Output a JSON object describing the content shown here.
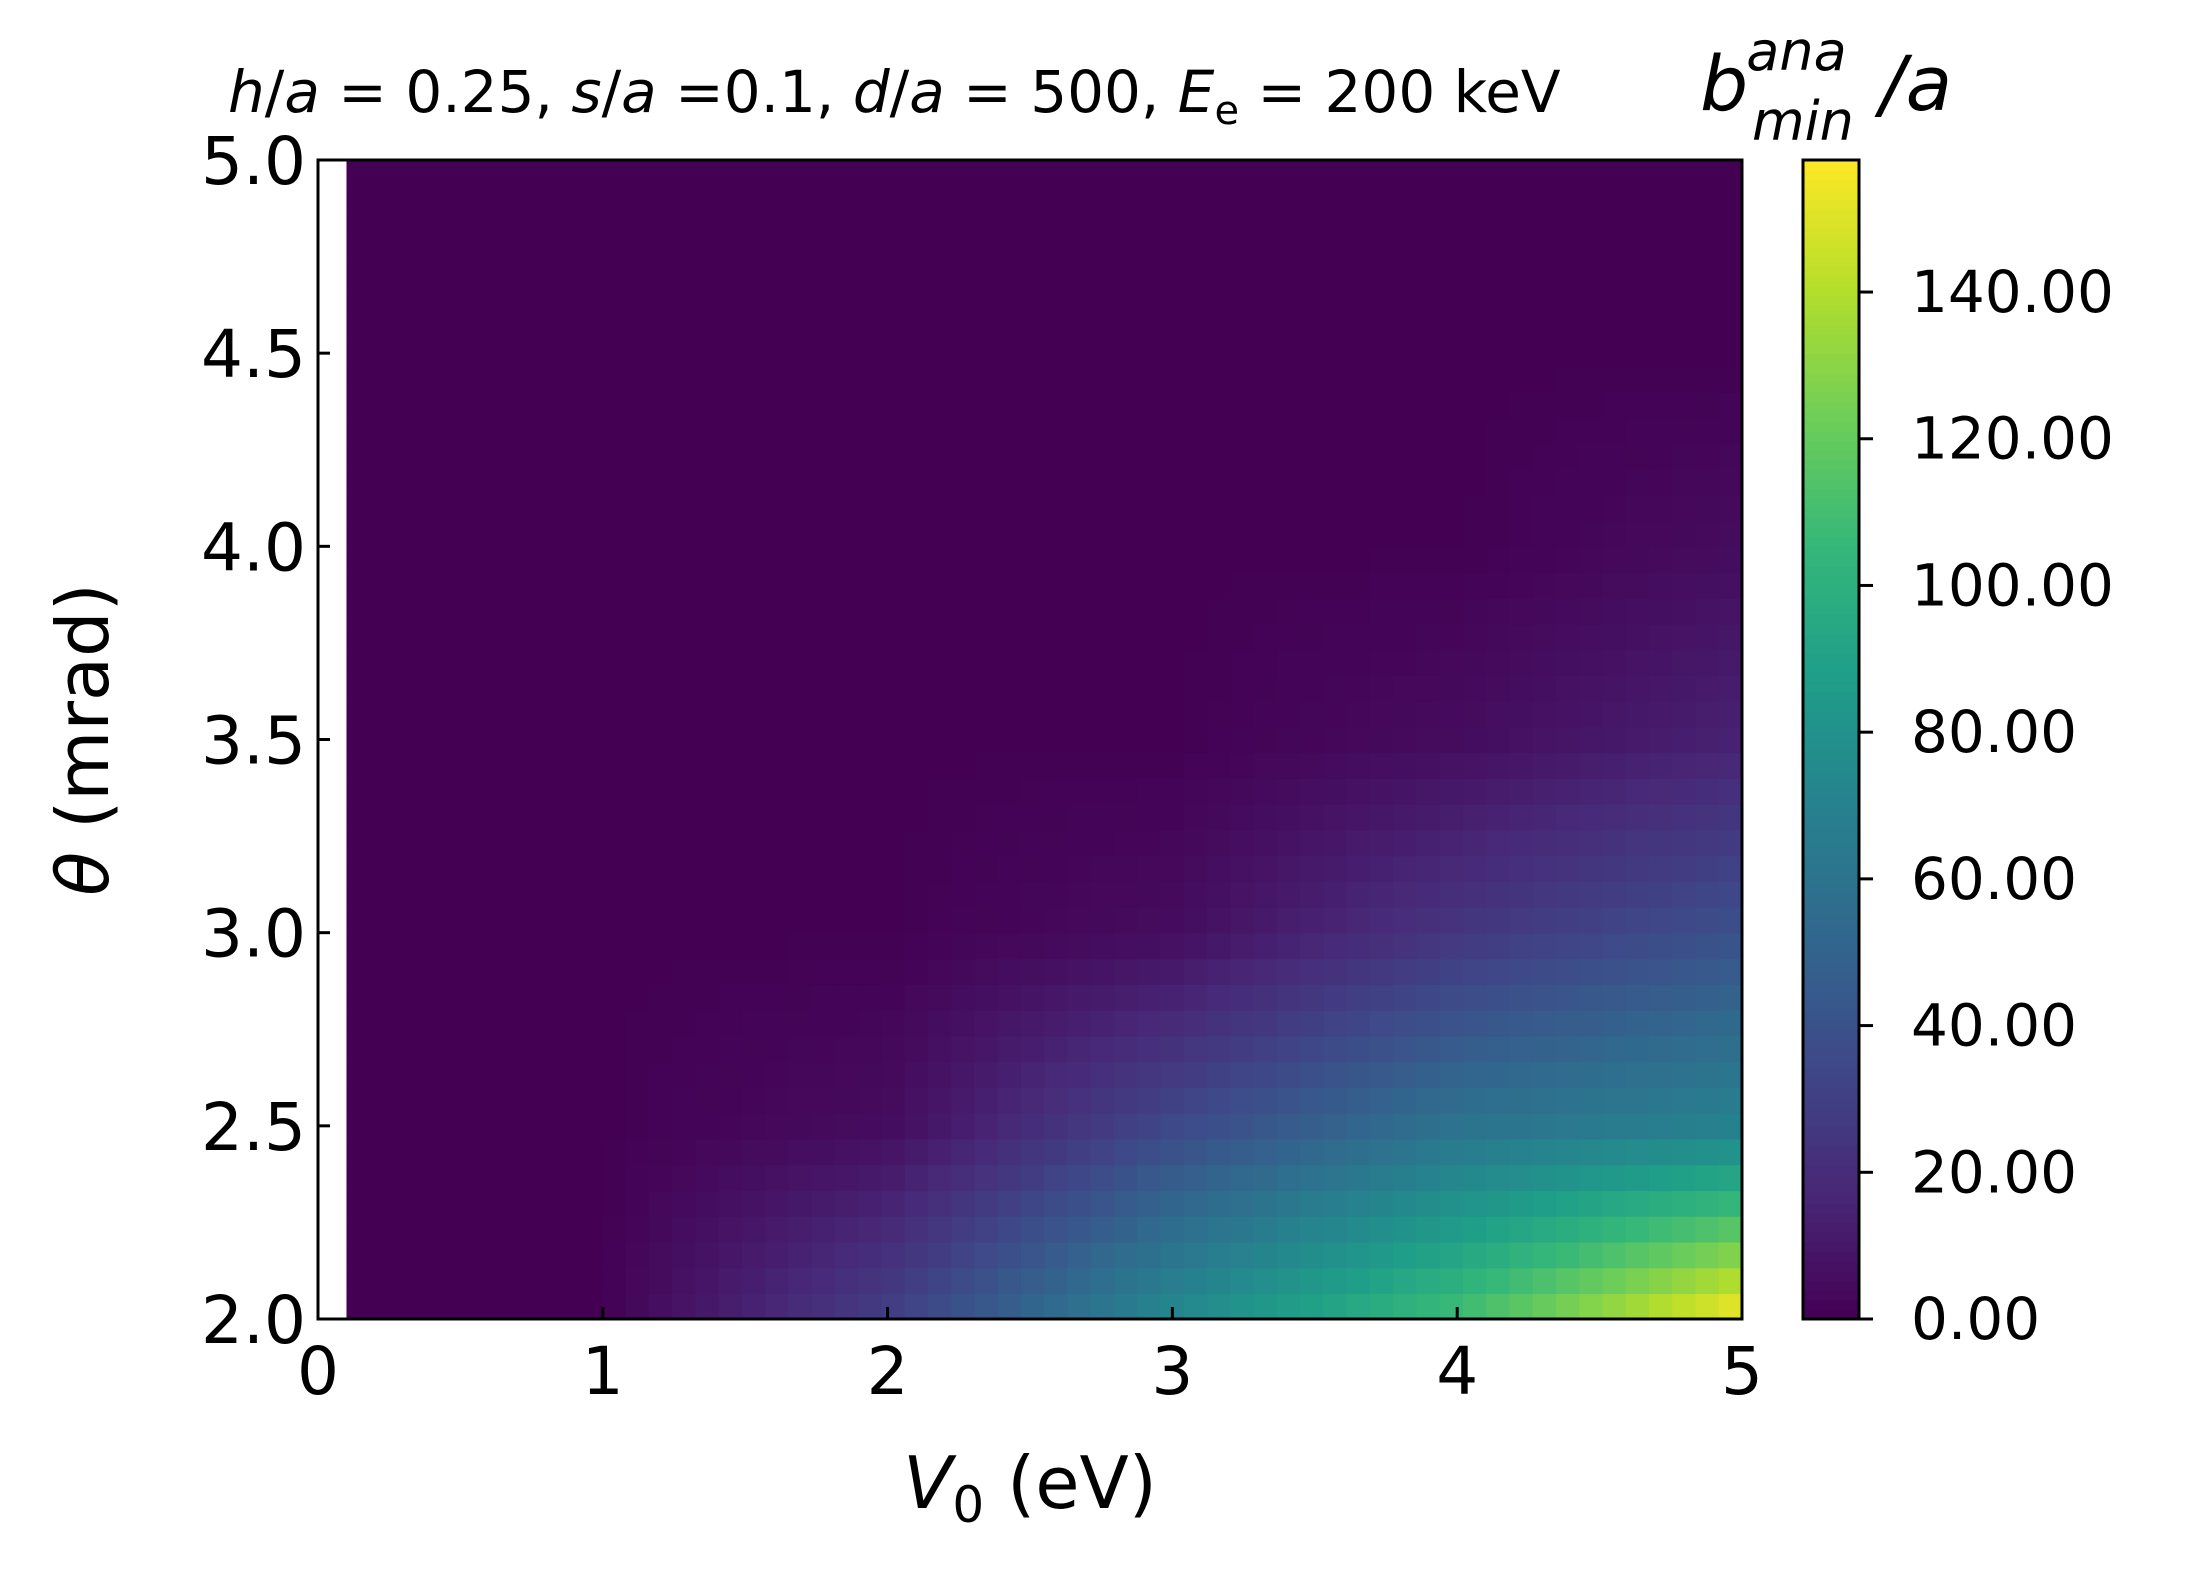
{
  "chart_data": {
    "type": "heatmap",
    "title_parts": [
      {
        "text": "h",
        "italic": true
      },
      {
        "text": "/",
        "italic": false
      },
      {
        "text": "a",
        "italic": true
      },
      {
        "text": " = 0.25, ",
        "italic": false
      },
      {
        "text": "s",
        "italic": true
      },
      {
        "text": "/",
        "italic": false
      },
      {
        "text": "a",
        "italic": true
      },
      {
        "text": " =0.1, ",
        "italic": false
      },
      {
        "text": "d",
        "italic": true
      },
      {
        "text": "/",
        "italic": false
      },
      {
        "text": "a",
        "italic": true
      },
      {
        "text": " = 500, ",
        "italic": false
      },
      {
        "text": "E",
        "italic": true
      },
      {
        "text": "e",
        "italic": false,
        "sub": true
      },
      {
        "text": " = 200 keV",
        "italic": false
      }
    ],
    "x": {
      "label_main": "V",
      "label_sub": "0",
      "label_rest": " (eV)",
      "range": [
        0,
        5
      ],
      "ticks": [
        0,
        1,
        2,
        3,
        4,
        5
      ],
      "tick_labels": [
        "0",
        "1",
        "2",
        "3",
        "4",
        "5"
      ],
      "data_start": 0.1
    },
    "y": {
      "label_main": "θ",
      "label_rest": " (mrad)",
      "range": [
        2.0,
        5.0
      ],
      "ticks": [
        2.0,
        2.5,
        3.0,
        3.5,
        4.0,
        4.5,
        5.0
      ],
      "tick_labels": [
        "2.0",
        "2.5",
        "3.0",
        "3.5",
        "4.0",
        "4.5",
        "5.0"
      ]
    },
    "colorbar": {
      "label_main": "b",
      "label_sup": "ana",
      "label_sub": "min",
      "label_rest": "/a",
      "range": [
        0,
        158
      ],
      "ticks": [
        0,
        20,
        40,
        60,
        80,
        100,
        120,
        140
      ],
      "tick_labels": [
        "0.00",
        "20.00",
        "40.00",
        "60.00",
        "80.00",
        "100.00",
        "120.00",
        "140.00"
      ],
      "colormap": "viridis",
      "colormap_stops": [
        "#440154",
        "#482878",
        "#3e4989",
        "#31688e",
        "#26828e",
        "#1f9e89",
        "#35b779",
        "#6ece58",
        "#b5de2b",
        "#fde725"
      ]
    },
    "grid_samples": {
      "x": [
        0.1,
        1.0,
        2.0,
        3.0,
        4.0,
        5.0
      ],
      "y": [
        2.0,
        2.5,
        3.0,
        3.5,
        4.0,
        4.5,
        5.0
      ],
      "z_rows": [
        [
          0,
          0,
          30,
          75,
          110,
          158
        ],
        [
          0,
          0,
          5,
          35,
          60,
          70
        ],
        [
          0,
          0,
          0,
          5,
          25,
          40
        ],
        [
          0,
          0,
          0,
          0,
          5,
          15
        ],
        [
          0,
          0,
          0,
          0,
          0,
          5
        ],
        [
          0,
          0,
          0,
          0,
          0,
          0
        ],
        [
          0,
          0,
          0,
          0,
          0,
          0
        ]
      ]
    }
  }
}
